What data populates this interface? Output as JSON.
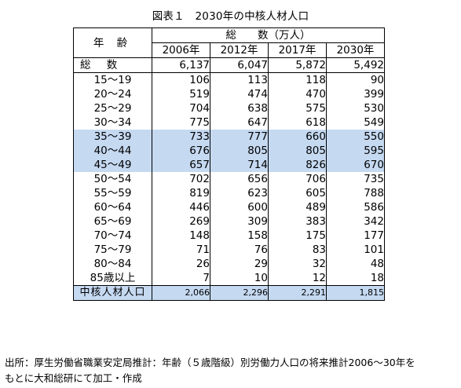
{
  "caption": "図表１　2030年の中核人材人口",
  "header": {
    "age_label": "年 齢",
    "group_label": "総　　数（万人）",
    "years": [
      "2006年",
      "2012年",
      "2017年",
      "2030年"
    ]
  },
  "total_row": {
    "label": "総 数",
    "values": [
      "6,137",
      "6,047",
      "5,872",
      "5,492"
    ]
  },
  "rows": [
    {
      "label": "15～19",
      "values": [
        "106",
        "113",
        "118",
        "90"
      ]
    },
    {
      "label": "20～24",
      "values": [
        "519",
        "474",
        "470",
        "399"
      ]
    },
    {
      "label": "25～29",
      "values": [
        "704",
        "638",
        "575",
        "530"
      ]
    },
    {
      "label": "30～34",
      "values": [
        "775",
        "647",
        "618",
        "549"
      ]
    },
    {
      "label": "35～39",
      "values": [
        "733",
        "777",
        "660",
        "550"
      ]
    },
    {
      "label": "40～44",
      "values": [
        "676",
        "805",
        "805",
        "595"
      ]
    },
    {
      "label": "45～49",
      "values": [
        "657",
        "714",
        "826",
        "670"
      ]
    },
    {
      "label": "50～54",
      "values": [
        "702",
        "656",
        "706",
        "735"
      ]
    },
    {
      "label": "55～59",
      "values": [
        "819",
        "623",
        "605",
        "788"
      ]
    },
    {
      "label": "60～64",
      "values": [
        "446",
        "600",
        "489",
        "586"
      ]
    },
    {
      "label": "65～69",
      "values": [
        "269",
        "309",
        "383",
        "342"
      ]
    },
    {
      "label": "70～74",
      "values": [
        "148",
        "158",
        "175",
        "177"
      ]
    },
    {
      "label": "75～79",
      "values": [
        "71",
        "76",
        "83",
        "101"
      ]
    },
    {
      "label": "80～84",
      "values": [
        "26",
        "29",
        "32",
        "48"
      ]
    },
    {
      "label": "85歳以上",
      "values": [
        "7",
        "10",
        "12",
        "18"
      ]
    }
  ],
  "highlight_color": "#c5d9f1",
  "core_row": {
    "label": "中核人材人口",
    "values": [
      "2,066",
      "2,296",
      "2,291",
      "1,815"
    ]
  },
  "source": {
    "line1": "出所：厚生労働省職業安定局推計：年齢（５歳階級）別労働力人口の将来推計2006～30年を",
    "line2": "もとに大和総研にて加工・作成"
  }
}
